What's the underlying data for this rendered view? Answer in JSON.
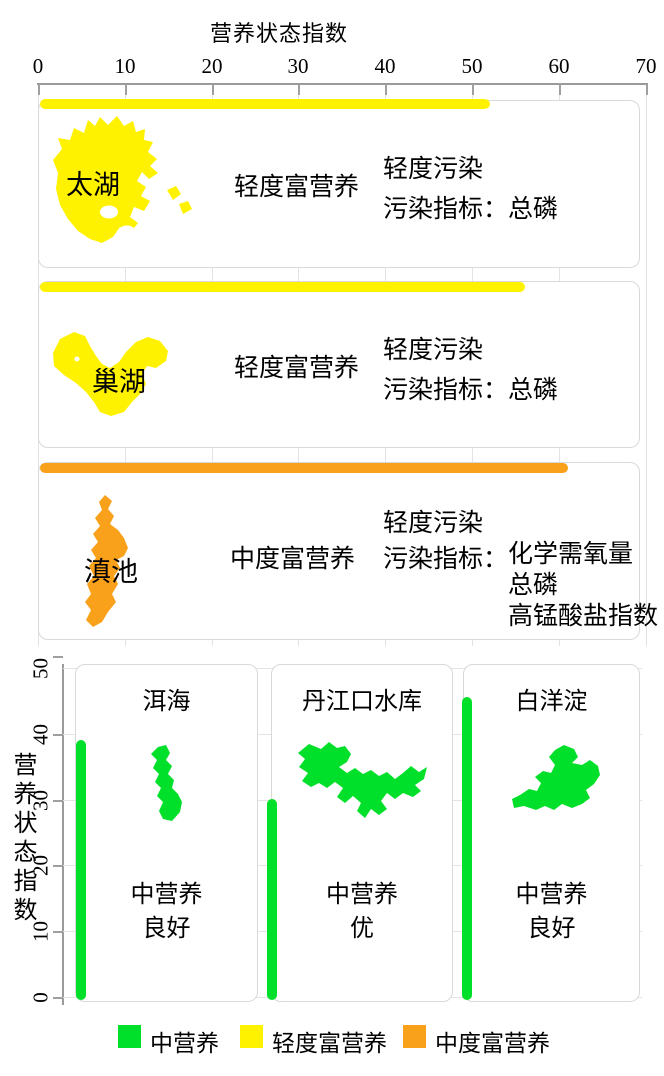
{
  "top_chart": {
    "title": "营养状态指数",
    "ticks": [
      "0",
      "10",
      "20",
      "30",
      "40",
      "50",
      "60",
      "70"
    ],
    "panels": [
      {
        "lake": "太湖",
        "tli": 52,
        "bar_color": "#FFF200",
        "trophic_level": "轻度富营养",
        "pollution_level": "轻度污染",
        "indicator_label": "污染指标：",
        "indicators": [
          "总磷"
        ]
      },
      {
        "lake": "巢湖",
        "tli": 56,
        "bar_color": "#FFF200",
        "trophic_level": "轻度富营养",
        "pollution_level": "轻度污染",
        "indicator_label": "污染指标：",
        "indicators": [
          "总磷"
        ]
      },
      {
        "lake": "滇池",
        "tli": 61,
        "bar_color": "#F9A11B",
        "trophic_level": "中度富营养",
        "pollution_level": "轻度污染",
        "indicator_label": "污染指标：",
        "indicators": [
          "化学需氧量",
          "总磷",
          "高锰酸盐指数"
        ]
      }
    ]
  },
  "bottom_chart": {
    "axis_label": "营养状态指数",
    "ticks": [
      "0",
      "10",
      "20",
      "30",
      "40",
      "50"
    ],
    "panels": [
      {
        "lake": "洱海",
        "tli": 39.5,
        "bar_color": "#00E02A",
        "trophic_level": "中营养",
        "water_quality": "良好"
      },
      {
        "lake": "丹江口水库",
        "tli": 30.5,
        "bar_color": "#00E02A",
        "trophic_level": "中营养",
        "water_quality": "优"
      },
      {
        "lake": "白洋淀",
        "tli": 46,
        "bar_color": "#00E02A",
        "trophic_level": "中营养",
        "water_quality": "良好"
      }
    ]
  },
  "legend": {
    "items": [
      {
        "label": "中营养",
        "color": "#00E02A"
      },
      {
        "label": "轻度富营养",
        "color": "#FFF200"
      },
      {
        "label": "中度富营养",
        "color": "#F9A11B"
      }
    ]
  },
  "colors": {
    "mesotrophic_green": "#00E02A",
    "light_eutrophic_yellow": "#FFF200",
    "moderate_eutrophic_orange": "#F9A11B",
    "grid": "#E3E3E3",
    "axis": "#9A9A9A",
    "panel_border": "#D9D9D9"
  },
  "chart_data": [
    {
      "type": "bar",
      "orientation": "horizontal",
      "title": "营养状态指数",
      "xlabel": "营养状态指数",
      "xlim": [
        0,
        70
      ],
      "xticks": [
        0,
        10,
        20,
        30,
        40,
        50,
        60,
        70
      ],
      "grid": true,
      "categories": [
        "太湖",
        "巢湖",
        "滇池"
      ],
      "values": [
        52,
        56,
        61
      ],
      "bar_colors": [
        "#FFF200",
        "#FFF200",
        "#F9A11B"
      ],
      "trophic_levels": [
        "轻度富营养",
        "轻度富营养",
        "中度富营养"
      ],
      "pollution_levels": [
        "轻度污染",
        "轻度污染",
        "轻度污染"
      ],
      "pollution_indicators": [
        [
          "总磷"
        ],
        [
          "总磷"
        ],
        [
          "化学需氧量",
          "总磷",
          "高锰酸盐指数"
        ]
      ]
    },
    {
      "type": "bar",
      "orientation": "vertical",
      "ylabel": "营养状态指数",
      "ylim": [
        0,
        50
      ],
      "yticks": [
        0,
        10,
        20,
        30,
        40,
        50
      ],
      "grid": true,
      "categories": [
        "洱海",
        "丹江口水库",
        "白洋淀"
      ],
      "values": [
        39.5,
        30.5,
        46
      ],
      "bar_colors": [
        "#00E02A",
        "#00E02A",
        "#00E02A"
      ],
      "trophic_levels": [
        "中营养",
        "中营养",
        "中营养"
      ],
      "water_quality": [
        "良好",
        "优",
        "良好"
      ],
      "legend_position": "bottom",
      "legend": [
        "中营养",
        "轻度富营养",
        "中度富营养"
      ]
    }
  ]
}
